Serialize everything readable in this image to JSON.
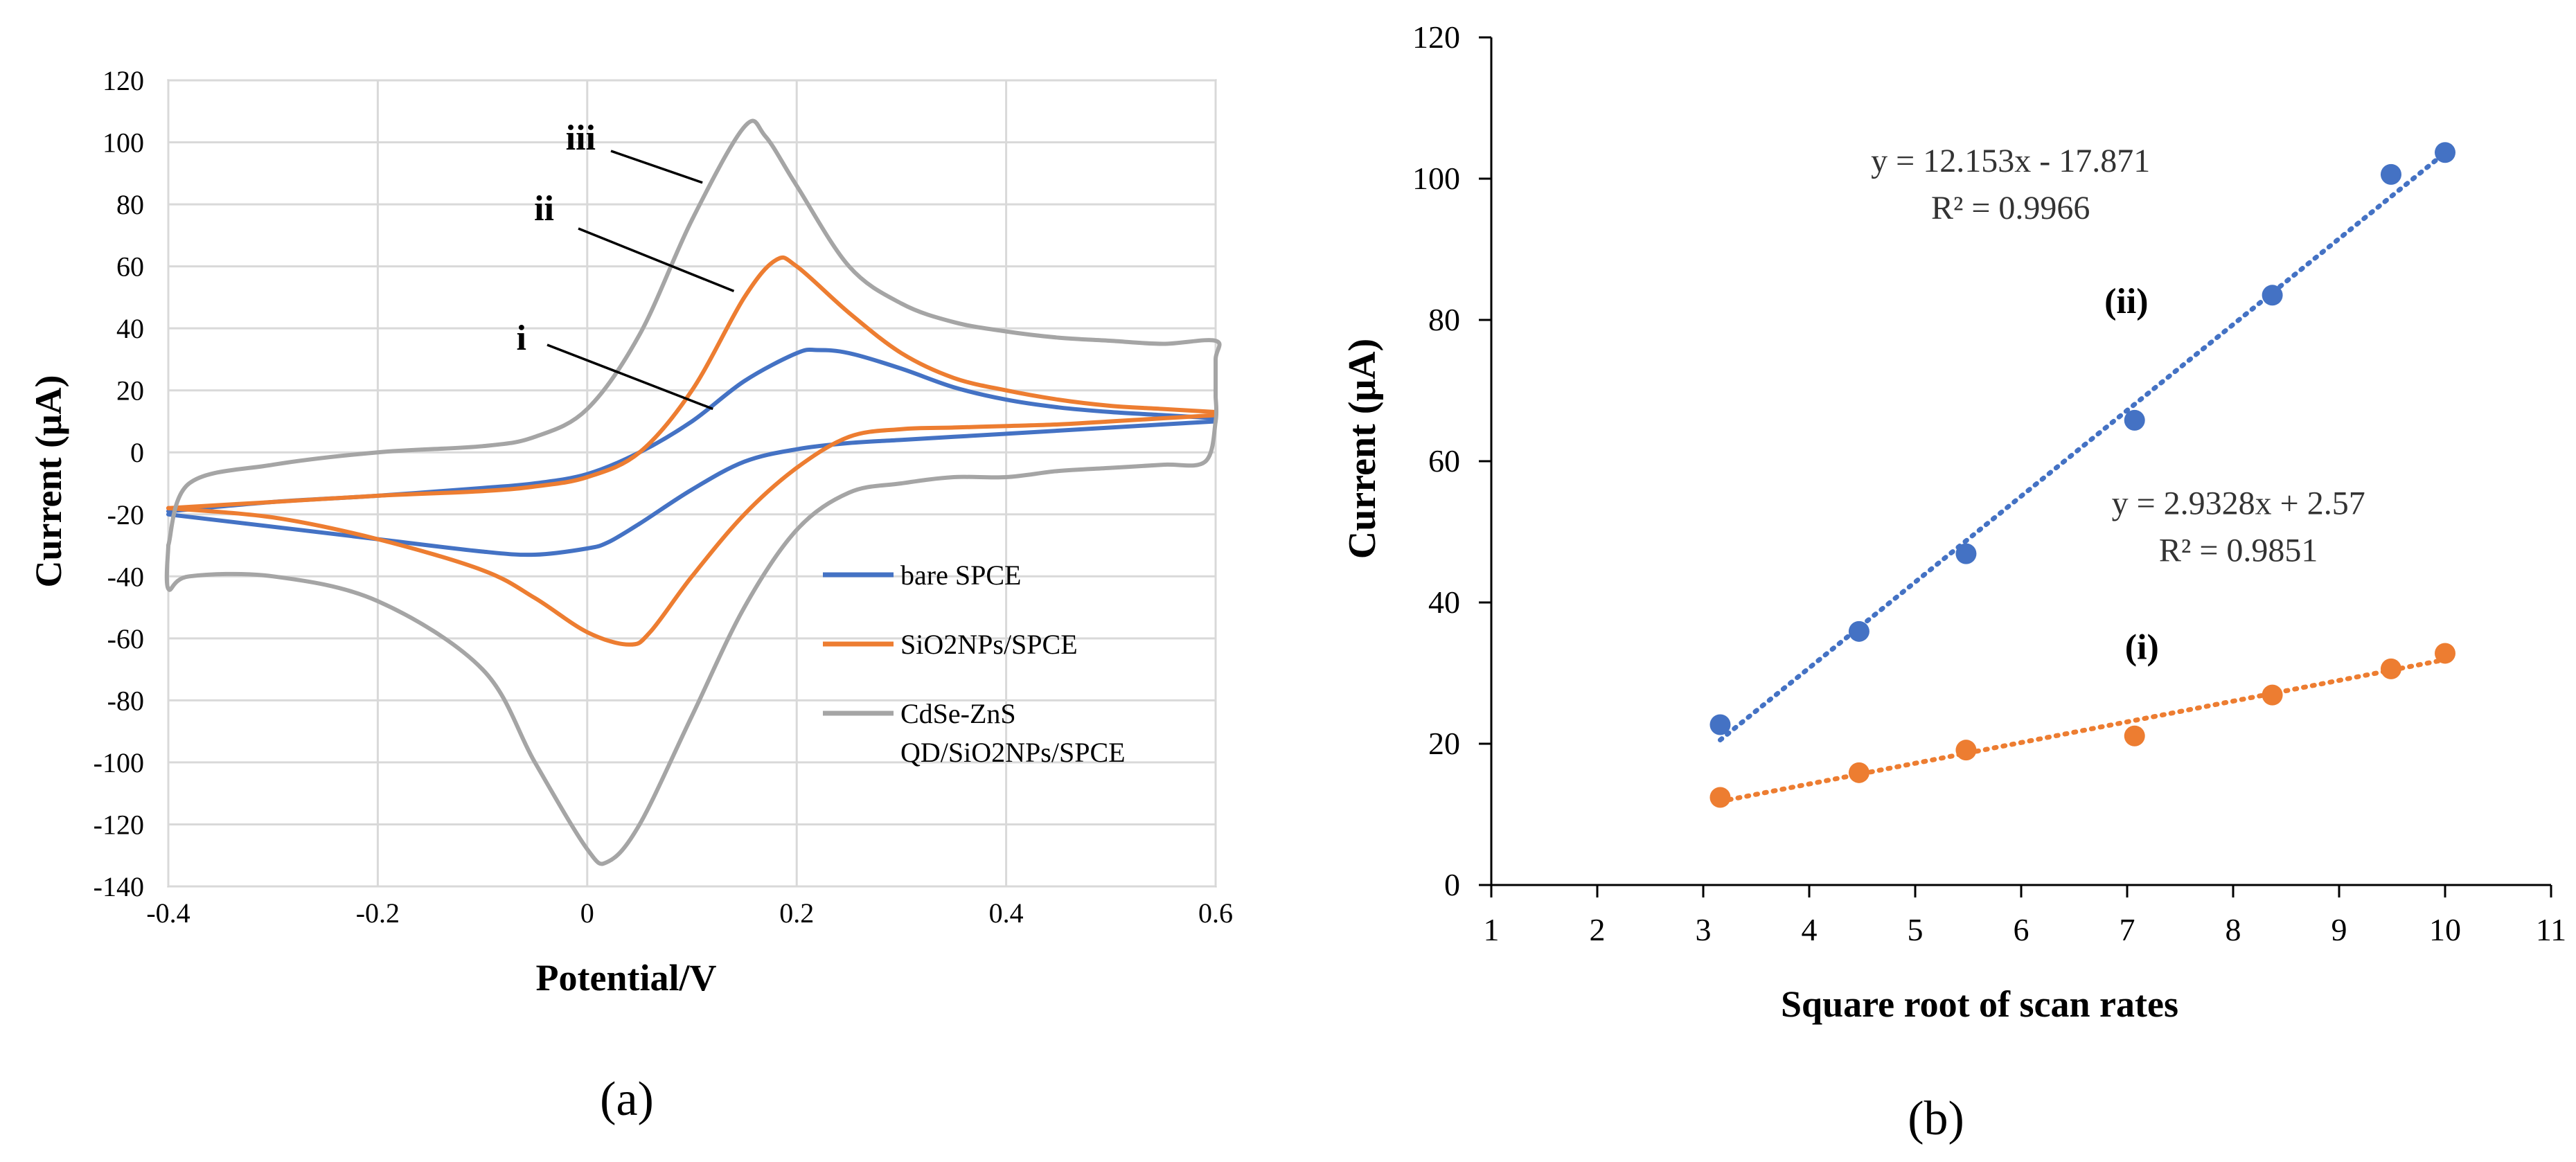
{
  "chart_data": [
    {
      "panel_label": "(a)",
      "type": "line",
      "title": "",
      "xlabel": "Potential/V",
      "ylabel": "Current (μA)",
      "xlim": [
        -0.4,
        0.6
      ],
      "ylim": [
        -140,
        120
      ],
      "grid": true,
      "xticks": [
        -0.4,
        -0.2,
        0,
        0.2,
        0.4,
        0.6
      ],
      "xtick_labels": [
        "-0.4",
        "-0.2",
        "0",
        "0.2",
        "0.4",
        "0.6"
      ],
      "yticks": [
        -140,
        -120,
        -100,
        -80,
        -60,
        -40,
        -20,
        0,
        20,
        40,
        60,
        80,
        100,
        120
      ],
      "ytick_labels": [
        "-140",
        "-120",
        "-100",
        "-80",
        "-60",
        "-40",
        "-20",
        "0",
        "20",
        "40",
        "60",
        "80",
        "100",
        "120"
      ],
      "legend_position": "right-middle",
      "series": [
        {
          "name": "bare SPCE",
          "legend_lines": [
            "bare SPCE"
          ],
          "color": "#4472C4",
          "annotation": "i",
          "forward": [
            [
              -0.4,
              -19
            ],
            [
              -0.3,
              -16
            ],
            [
              -0.2,
              -14
            ],
            [
              -0.1,
              -11.5
            ],
            [
              -0.05,
              -10
            ],
            [
              0,
              -7
            ],
            [
              0.05,
              0
            ],
            [
              0.1,
              10
            ],
            [
              0.15,
              23
            ],
            [
              0.2,
              32
            ],
            [
              0.22,
              33
            ],
            [
              0.25,
              32
            ],
            [
              0.3,
              27
            ],
            [
              0.35,
              21
            ],
            [
              0.4,
              17
            ],
            [
              0.45,
              14.5
            ],
            [
              0.5,
              13
            ],
            [
              0.55,
              12
            ],
            [
              0.6,
              11
            ]
          ],
          "reverse": [
            [
              0.6,
              10
            ],
            [
              0.55,
              9
            ],
            [
              0.5,
              8
            ],
            [
              0.45,
              7
            ],
            [
              0.4,
              6
            ],
            [
              0.35,
              5
            ],
            [
              0.3,
              4
            ],
            [
              0.25,
              3
            ],
            [
              0.2,
              1
            ],
            [
              0.15,
              -3
            ],
            [
              0.1,
              -12
            ],
            [
              0.05,
              -23
            ],
            [
              0.02,
              -29
            ],
            [
              0,
              -31
            ],
            [
              -0.05,
              -33
            ],
            [
              -0.1,
              -32
            ],
            [
              -0.2,
              -28
            ],
            [
              -0.3,
              -24
            ],
            [
              -0.4,
              -20
            ]
          ],
          "annotation_point": [
            0.12,
            14
          ]
        },
        {
          "name": "SiO2NPs/SPCE",
          "legend_lines": [
            "SiO2NPs/SPCE"
          ],
          "color": "#ED7D31",
          "annotation": "ii",
          "forward": [
            [
              -0.4,
              -18
            ],
            [
              -0.3,
              -16
            ],
            [
              -0.2,
              -14
            ],
            [
              -0.1,
              -12.5
            ],
            [
              -0.05,
              -11
            ],
            [
              0,
              -8
            ],
            [
              0.05,
              0
            ],
            [
              0.1,
              20
            ],
            [
              0.15,
              50
            ],
            [
              0.18,
              62
            ],
            [
              0.2,
              60
            ],
            [
              0.25,
              45
            ],
            [
              0.3,
              32
            ],
            [
              0.35,
              24
            ],
            [
              0.4,
              20
            ],
            [
              0.45,
              17
            ],
            [
              0.5,
              15
            ],
            [
              0.55,
              14
            ],
            [
              0.6,
              13
            ]
          ],
          "reverse": [
            [
              0.6,
              12
            ],
            [
              0.55,
              11
            ],
            [
              0.5,
              10
            ],
            [
              0.45,
              9
            ],
            [
              0.4,
              8.5
            ],
            [
              0.35,
              8
            ],
            [
              0.3,
              7.5
            ],
            [
              0.25,
              5
            ],
            [
              0.2,
              -5
            ],
            [
              0.15,
              -20
            ],
            [
              0.1,
              -40
            ],
            [
              0.06,
              -58
            ],
            [
              0.04,
              -62
            ],
            [
              0,
              -58
            ],
            [
              -0.05,
              -47
            ],
            [
              -0.1,
              -38
            ],
            [
              -0.2,
              -28
            ],
            [
              -0.3,
              -21
            ],
            [
              -0.4,
              -18
            ]
          ],
          "annotation_point": [
            0.14,
            52
          ]
        },
        {
          "name": "CdSe-ZnS QD/SiO2NPs/SPCE",
          "legend_lines": [
            "CdSe-ZnS",
            "QD/SiO2NPs/SPCE"
          ],
          "color": "#A5A5A5",
          "annotation": "iii",
          "forward": [
            [
              -0.4,
              -30
            ],
            [
              -0.38,
              -10
            ],
            [
              -0.3,
              -4
            ],
            [
              -0.2,
              0
            ],
            [
              -0.1,
              2
            ],
            [
              -0.05,
              5
            ],
            [
              0,
              14
            ],
            [
              0.05,
              38
            ],
            [
              0.1,
              75
            ],
            [
              0.15,
              105
            ],
            [
              0.17,
              102
            ],
            [
              0.2,
              86
            ],
            [
              0.25,
              60
            ],
            [
              0.3,
              48
            ],
            [
              0.35,
              42
            ],
            [
              0.4,
              39
            ],
            [
              0.45,
              37
            ],
            [
              0.5,
              36
            ],
            [
              0.55,
              35
            ],
            [
              0.6,
              36
            ],
            [
              0.6,
              30
            ],
            [
              0.6,
              18
            ]
          ],
          "reverse": [
            [
              0.6,
              18
            ],
            [
              0.6,
              10
            ],
            [
              0.59,
              -3
            ],
            [
              0.55,
              -4
            ],
            [
              0.5,
              -5
            ],
            [
              0.45,
              -6
            ],
            [
              0.4,
              -8
            ],
            [
              0.35,
              -8
            ],
            [
              0.3,
              -10
            ],
            [
              0.25,
              -13
            ],
            [
              0.2,
              -25
            ],
            [
              0.15,
              -50
            ],
            [
              0.1,
              -85
            ],
            [
              0.05,
              -120
            ],
            [
              0.02,
              -132
            ],
            [
              0,
              -128
            ],
            [
              -0.05,
              -100
            ],
            [
              -0.1,
              -70
            ],
            [
              -0.2,
              -48
            ],
            [
              -0.3,
              -40
            ],
            [
              -0.38,
              -40
            ],
            [
              -0.4,
              -44
            ],
            [
              -0.4,
              -30
            ]
          ],
          "annotation_point": [
            0.11,
            87
          ]
        }
      ]
    },
    {
      "panel_label": "(b)",
      "type": "scatter",
      "title": "",
      "xlabel": "Square root of scan rates",
      "ylabel": "Current (μA)",
      "xlim": [
        1,
        11
      ],
      "ylim": [
        0,
        120
      ],
      "grid": false,
      "xticks": [
        1,
        2,
        3,
        4,
        5,
        6,
        7,
        8,
        9,
        10,
        11
      ],
      "xtick_labels": [
        "1",
        "2",
        "3",
        "4",
        "5",
        "6",
        "7",
        "8",
        "9",
        "10",
        "11"
      ],
      "yticks": [
        0,
        20,
        40,
        60,
        80,
        100,
        120
      ],
      "ytick_labels": [
        "0",
        "20",
        "40",
        "60",
        "80",
        "100",
        "120"
      ],
      "series": [
        {
          "name": "(ii)",
          "color": "#4472C4",
          "x": [
            3.16,
            4.47,
            5.48,
            7.07,
            8.37,
            9.49,
            10.0
          ],
          "y": [
            22.7,
            35.9,
            46.9,
            65.8,
            83.5,
            100.6,
            103.7
          ],
          "trendline": {
            "slope": 12.153,
            "intercept": -17.871,
            "x_range": [
              3.16,
              10.0
            ]
          },
          "equation": "y = 12.153x - 17.871",
          "r_squared": "R² = 0.9966",
          "label_anchor": [
            5.9,
            101
          ],
          "series_label_anchor": [
            7.2,
            81
          ]
        },
        {
          "name": "(i)",
          "color": "#ED7D31",
          "x": [
            3.16,
            4.47,
            5.48,
            7.07,
            8.37,
            9.49,
            10.0
          ],
          "y": [
            12.4,
            15.9,
            19.1,
            21.1,
            26.9,
            30.6,
            32.8
          ],
          "trendline": {
            "slope": 2.9328,
            "intercept": 2.57,
            "x_range": [
              3.16,
              10.0
            ]
          },
          "equation": "y = 2.9328x + 2.57",
          "r_squared": "R² = 0.9851",
          "label_anchor": [
            8.05,
            52.5
          ],
          "series_label_anchor": [
            7.3,
            32
          ]
        }
      ]
    }
  ]
}
